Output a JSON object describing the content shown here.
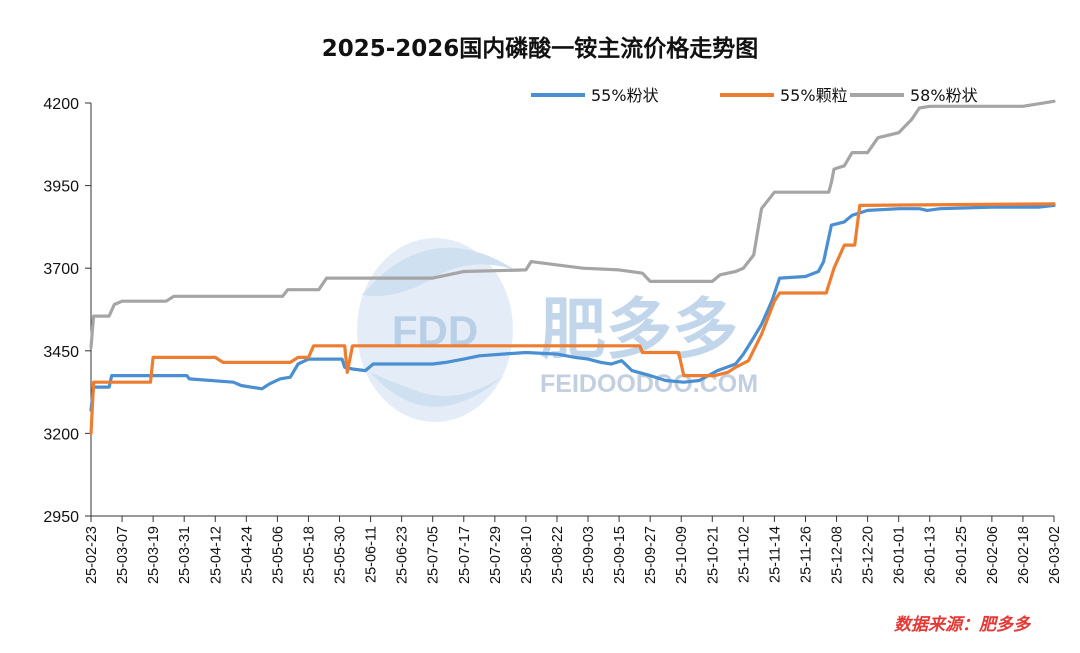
{
  "chart_data": {
    "type": "line",
    "title": "2025-2026国内磷酸一铵主流价格走势图",
    "xlabel": "",
    "ylabel": "",
    "ylim": [
      2950,
      4200
    ],
    "yticks": [
      2950,
      3200,
      3450,
      3700,
      3950,
      4200
    ],
    "grid": false,
    "legend_position": "top-right",
    "xtick_labels": [
      "25-02-23",
      "25-03-07",
      "25-03-19",
      "25-03-31",
      "25-04-12",
      "25-04-24",
      "25-05-06",
      "25-05-18",
      "25-05-30",
      "25-06-11",
      "25-06-23",
      "25-07-05",
      "25-07-17",
      "25-07-29",
      "25-08-10",
      "25-08-22",
      "25-09-03",
      "25-09-15",
      "25-09-27",
      "25-10-09",
      "25-10-21",
      "25-11-02",
      "25-11-14",
      "25-11-26",
      "25-12-08",
      "25-12-20",
      "26-01-01",
      "26-01-13",
      "26-01-25",
      "26-02-06",
      "26-02-18",
      "26-03-02"
    ],
    "series": [
      {
        "name": "55%粉状",
        "color": "#4a8fd2",
        "points": [
          [
            "25-02-23",
            3270
          ],
          [
            "25-02-24",
            3340
          ],
          [
            "25-03-02",
            3340
          ],
          [
            "25-03-03",
            3375
          ],
          [
            "25-03-22",
            3375
          ],
          [
            "25-04-01",
            3375
          ],
          [
            "25-04-02",
            3365
          ],
          [
            "25-04-19",
            3355
          ],
          [
            "25-04-22",
            3345
          ],
          [
            "25-04-30",
            3335
          ],
          [
            "25-05-03",
            3350
          ],
          [
            "25-05-07",
            3365
          ],
          [
            "25-05-11",
            3370
          ],
          [
            "25-05-14",
            3410
          ],
          [
            "25-05-18",
            3425
          ],
          [
            "25-05-20",
            3425
          ],
          [
            "25-05-31",
            3425
          ],
          [
            "25-06-01",
            3400
          ],
          [
            "25-06-04",
            3395
          ],
          [
            "25-06-09",
            3390
          ],
          [
            "25-06-12",
            3410
          ],
          [
            "25-06-23",
            3410
          ],
          [
            "25-07-05",
            3410
          ],
          [
            "25-07-10",
            3415
          ],
          [
            "25-07-17",
            3425
          ],
          [
            "25-07-23",
            3435
          ],
          [
            "25-08-01",
            3440
          ],
          [
            "25-08-10",
            3445
          ],
          [
            "25-08-22",
            3440
          ],
          [
            "25-08-29",
            3430
          ],
          [
            "25-09-03",
            3425
          ],
          [
            "25-09-08",
            3415
          ],
          [
            "25-09-12",
            3410
          ],
          [
            "25-09-16",
            3420
          ],
          [
            "25-09-20",
            3390
          ],
          [
            "25-09-27",
            3375
          ],
          [
            "25-10-03",
            3360
          ],
          [
            "25-10-10",
            3355
          ],
          [
            "25-10-16",
            3360
          ],
          [
            "25-10-23",
            3390
          ],
          [
            "25-10-30",
            3410
          ],
          [
            "25-11-02",
            3440
          ],
          [
            "25-11-06",
            3490
          ],
          [
            "25-11-09",
            3530
          ],
          [
            "25-11-13",
            3600
          ],
          [
            "25-11-16",
            3670
          ],
          [
            "25-11-26",
            3675
          ],
          [
            "25-12-01",
            3690
          ],
          [
            "25-12-03",
            3720
          ],
          [
            "25-12-06",
            3830
          ],
          [
            "25-12-11",
            3840
          ],
          [
            "25-12-14",
            3860
          ],
          [
            "25-12-20",
            3875
          ],
          [
            "26-01-01",
            3880
          ],
          [
            "26-01-09",
            3880
          ],
          [
            "26-01-12",
            3875
          ],
          [
            "26-01-17",
            3880
          ],
          [
            "26-02-06",
            3885
          ],
          [
            "26-02-24",
            3885
          ],
          [
            "26-03-02",
            3890
          ]
        ]
      },
      {
        "name": "55%颗粒",
        "color": "#ed7d31",
        "points": [
          [
            "25-02-23",
            3200
          ],
          [
            "25-02-24",
            3355
          ],
          [
            "25-03-18",
            3355
          ],
          [
            "25-03-19",
            3430
          ],
          [
            "25-04-12",
            3430
          ],
          [
            "25-04-15",
            3415
          ],
          [
            "25-05-11",
            3415
          ],
          [
            "25-05-14",
            3430
          ],
          [
            "25-05-18",
            3430
          ],
          [
            "25-05-20",
            3465
          ],
          [
            "25-06-01",
            3465
          ],
          [
            "25-06-02",
            3385
          ],
          [
            "25-06-04",
            3465
          ],
          [
            "25-06-23",
            3465
          ],
          [
            "25-07-17",
            3465
          ],
          [
            "25-08-22",
            3465
          ],
          [
            "25-09-23",
            3465
          ],
          [
            "25-09-24",
            3445
          ],
          [
            "25-10-08",
            3445
          ],
          [
            "25-10-10",
            3375
          ],
          [
            "25-10-22",
            3375
          ],
          [
            "25-10-27",
            3385
          ],
          [
            "25-10-30",
            3400
          ],
          [
            "25-11-04",
            3420
          ],
          [
            "25-11-09",
            3500
          ],
          [
            "25-11-14",
            3600
          ],
          [
            "25-11-16",
            3625
          ],
          [
            "25-12-04",
            3625
          ],
          [
            "25-12-07",
            3700
          ],
          [
            "25-12-11",
            3770
          ],
          [
            "25-12-15",
            3770
          ],
          [
            "25-12-17",
            3890
          ],
          [
            "26-03-02",
            3895
          ]
        ]
      },
      {
        "name": "58%粉状",
        "color": "#a5a5a5",
        "points": [
          [
            "25-02-23",
            3460
          ],
          [
            "25-02-24",
            3555
          ],
          [
            "25-03-02",
            3555
          ],
          [
            "25-03-04",
            3590
          ],
          [
            "25-03-07",
            3600
          ],
          [
            "25-03-24",
            3600
          ],
          [
            "25-03-27",
            3615
          ],
          [
            "25-05-08",
            3615
          ],
          [
            "25-05-10",
            3635
          ],
          [
            "25-05-22",
            3635
          ],
          [
            "25-05-25",
            3670
          ],
          [
            "25-06-11",
            3670
          ],
          [
            "25-06-23",
            3670
          ],
          [
            "25-07-05",
            3670
          ],
          [
            "25-07-11",
            3680
          ],
          [
            "25-07-17",
            3690
          ],
          [
            "25-08-10",
            3695
          ],
          [
            "25-08-12",
            3720
          ],
          [
            "25-08-22",
            3710
          ],
          [
            "25-09-01",
            3700
          ],
          [
            "25-09-15",
            3695
          ],
          [
            "25-09-24",
            3685
          ],
          [
            "25-09-27",
            3660
          ],
          [
            "25-10-21",
            3660
          ],
          [
            "25-10-24",
            3680
          ],
          [
            "25-10-30",
            3690
          ],
          [
            "25-11-02",
            3700
          ],
          [
            "25-11-06",
            3740
          ],
          [
            "25-11-09",
            3880
          ],
          [
            "25-11-14",
            3930
          ],
          [
            "25-11-21",
            3930
          ],
          [
            "25-12-05",
            3930
          ],
          [
            "25-12-06",
            3960
          ],
          [
            "25-12-07",
            4000
          ],
          [
            "25-12-11",
            4010
          ],
          [
            "25-12-14",
            4050
          ],
          [
            "25-12-20",
            4050
          ],
          [
            "25-12-24",
            4095
          ],
          [
            "26-01-01",
            4110
          ],
          [
            "26-01-06",
            4150
          ],
          [
            "26-01-09",
            4185
          ],
          [
            "26-01-13",
            4190
          ],
          [
            "26-02-18",
            4190
          ],
          [
            "26-03-02",
            4205
          ]
        ]
      }
    ],
    "source_note": "数据来源：肥多多"
  },
  "watermark": {
    "logo_text": "FDD",
    "brand_name": "肥多多",
    "site": "FEIDOODOO.COM"
  }
}
